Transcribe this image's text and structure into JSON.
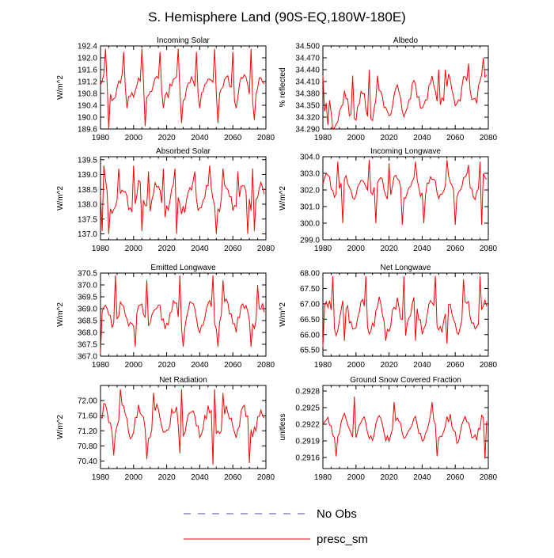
{
  "figure_title": "S. Hemisphere Land (90S-EQ,180W-180E)",
  "legend": [
    {
      "label": "No Obs",
      "color": "#4a4aa8",
      "style": "dashed"
    },
    {
      "label": "presc_sm",
      "color": "#ff0000",
      "style": "solid"
    }
  ],
  "chart_data": [
    {
      "type": "line",
      "title": "Incoming Solar",
      "ylabel": "W/m^2",
      "xlim": [
        1980,
        2080
      ],
      "ylim": [
        189.6,
        192.4
      ],
      "yticks": [
        "192.4",
        "192.0",
        "191.6",
        "191.2",
        "190.8",
        "190.4",
        "190.0",
        "189.6"
      ],
      "xticks": [
        "1980",
        "2000",
        "2020",
        "2040",
        "2060",
        "2080"
      ],
      "color": "#ff0000",
      "peaks": [
        {
          "x": 1983,
          "v": 192.3
        },
        {
          "x": 1994,
          "v": 192.2
        },
        {
          "x": 2005,
          "v": 192.3
        },
        {
          "x": 2016,
          "v": 192.2
        },
        {
          "x": 2027,
          "v": 192.3
        },
        {
          "x": 2038,
          "v": 192.2
        },
        {
          "x": 2049,
          "v": 192.3
        },
        {
          "x": 2060,
          "v": 192.2
        },
        {
          "x": 2071,
          "v": 192.3
        }
      ],
      "troughs": [
        {
          "x": 1985,
          "v": 189.6
        },
        {
          "x": 1996,
          "v": 190.3
        },
        {
          "x": 2007,
          "v": 189.7
        },
        {
          "x": 2018,
          "v": 190.3
        },
        {
          "x": 2029,
          "v": 189.8
        },
        {
          "x": 2040,
          "v": 190.3
        },
        {
          "x": 2051,
          "v": 189.8
        },
        {
          "x": 2062,
          "v": 190.3
        },
        {
          "x": 2073,
          "v": 189.9
        }
      ],
      "base": 191.0,
      "amp": 0.35,
      "trend": 0
    },
    {
      "type": "line",
      "title": "Albedo",
      "ylabel": "% reflected",
      "xlim": [
        1980,
        2080
      ],
      "ylim": [
        34.29,
        34.5
      ],
      "yticks": [
        "34.500",
        "34.470",
        "34.440",
        "34.410",
        "34.380",
        "34.350",
        "34.320",
        "34.290"
      ],
      "xticks": [
        "1980",
        "2000",
        "2020",
        "2040",
        "2060",
        "2080"
      ],
      "color": "#ff0000",
      "peaks": [
        {
          "x": 1980,
          "v": 34.425
        },
        {
          "x": 1998,
          "v": 34.425
        },
        {
          "x": 2008,
          "v": 34.44
        },
        {
          "x": 2013,
          "v": 34.425
        },
        {
          "x": 2050,
          "v": 34.44
        },
        {
          "x": 2054,
          "v": 34.44
        },
        {
          "x": 2068,
          "v": 34.455
        },
        {
          "x": 2077,
          "v": 34.47
        }
      ],
      "troughs": [
        {
          "x": 1986,
          "v": 34.29
        },
        {
          "x": 1983,
          "v": 34.3
        }
      ],
      "base": 34.33,
      "amp": 0.035,
      "trend": 0.0007
    },
    {
      "type": "line",
      "title": "Absorbed Solar",
      "ylabel": "W/m^2",
      "xlim": [
        1980,
        2080
      ],
      "ylim": [
        136.8,
        139.6
      ],
      "yticks": [
        "139.5",
        "139.0",
        "138.5",
        "138.0",
        "137.5",
        "137.0"
      ],
      "xticks": [
        "1980",
        "2000",
        "2020",
        "2040",
        "2060",
        "2080"
      ],
      "color": "#ff0000",
      "peaks": [
        {
          "x": 1982,
          "v": 139.3
        },
        {
          "x": 1991,
          "v": 139.2
        },
        {
          "x": 2000,
          "v": 139.3
        },
        {
          "x": 2009,
          "v": 139.1
        },
        {
          "x": 2018,
          "v": 139.2
        },
        {
          "x": 2025,
          "v": 139.2
        },
        {
          "x": 2037,
          "v": 139.1
        },
        {
          "x": 2046,
          "v": 139.3
        },
        {
          "x": 2054,
          "v": 139.2
        },
        {
          "x": 2063,
          "v": 139.1
        },
        {
          "x": 2072,
          "v": 139.2
        }
      ],
      "troughs": [
        {
          "x": 1981,
          "v": 137.1
        },
        {
          "x": 1985,
          "v": 137.0
        },
        {
          "x": 2005,
          "v": 137.1
        },
        {
          "x": 2026,
          "v": 137.0
        },
        {
          "x": 2050,
          "v": 137.0
        },
        {
          "x": 2069,
          "v": 137.0
        },
        {
          "x": 2073,
          "v": 137.1
        }
      ],
      "base": 138.2,
      "amp": 0.45,
      "trend": 0
    },
    {
      "type": "line",
      "title": "Incoming Longwave",
      "ylabel": "W/m^2",
      "xlim": [
        1980,
        2080
      ],
      "ylim": [
        299,
        304
      ],
      "yticks": [
        "304.0",
        "303.0",
        "302.0",
        "301.0",
        "300.0",
        "299.0"
      ],
      "xticks": [
        "1980",
        "2000",
        "2020",
        "2040",
        "2060",
        "2080"
      ],
      "color": "#ff0000",
      "peaks": [
        {
          "x": 1989,
          "v": 303.7
        },
        {
          "x": 2008,
          "v": 303.8
        },
        {
          "x": 2020,
          "v": 303.6
        },
        {
          "x": 2036,
          "v": 303.7
        },
        {
          "x": 2055,
          "v": 303.8
        },
        {
          "x": 2068,
          "v": 303.5
        },
        {
          "x": 2075,
          "v": 303.7
        }
      ],
      "troughs": [
        {
          "x": 1992,
          "v": 300.0
        },
        {
          "x": 2012,
          "v": 300.0
        },
        {
          "x": 2028,
          "v": 299.9
        },
        {
          "x": 2041,
          "v": 300.0
        },
        {
          "x": 2060,
          "v": 299.9
        },
        {
          "x": 2076,
          "v": 299.9
        }
      ],
      "base": 302.2,
      "amp": 0.6,
      "trend": 0
    },
    {
      "type": "line",
      "title": "Emitted Longwave",
      "ylabel": "W/m^2",
      "xlim": [
        1980,
        2080
      ],
      "ylim": [
        367,
        370.5
      ],
      "yticks": [
        "370.5",
        "370.0",
        "369.5",
        "369.0",
        "368.5",
        "368.0",
        "367.5",
        "367.0"
      ],
      "xticks": [
        "1980",
        "2000",
        "2020",
        "2040",
        "2060",
        "2080"
      ],
      "color": "#ff0000",
      "peaks": [
        {
          "x": 1989,
          "v": 370.4
        },
        {
          "x": 2008,
          "v": 370.2
        },
        {
          "x": 2028,
          "v": 370.4
        },
        {
          "x": 2048,
          "v": 370.4
        },
        {
          "x": 2054,
          "v": 370.2
        },
        {
          "x": 2075,
          "v": 370.0
        }
      ],
      "troughs": [
        {
          "x": 1980,
          "v": 367.1
        },
        {
          "x": 2001,
          "v": 367.4
        },
        {
          "x": 2030,
          "v": 367.4
        },
        {
          "x": 2051,
          "v": 367.4
        },
        {
          "x": 2071,
          "v": 367.4
        }
      ],
      "base": 368.7,
      "amp": 0.5,
      "trend": 0
    },
    {
      "type": "line",
      "title": "Net Longwave",
      "ylabel": "W/m^2",
      "xlim": [
        1980,
        2080
      ],
      "ylim": [
        65.3,
        68.0
      ],
      "yticks": [
        "68.00",
        "67.50",
        "67.00",
        "66.50",
        "66.00",
        "65.50"
      ],
      "xticks": [
        "1980",
        "2000",
        "2020",
        "2040",
        "2060",
        "2080"
      ],
      "color": "#ff0000",
      "peaks": [
        {
          "x": 1986,
          "v": 67.9
        },
        {
          "x": 2006,
          "v": 67.9
        },
        {
          "x": 2029,
          "v": 67.9
        },
        {
          "x": 2048,
          "v": 67.9
        },
        {
          "x": 2065,
          "v": 67.8
        },
        {
          "x": 2075,
          "v": 67.9
        }
      ],
      "troughs": [
        {
          "x": 1980,
          "v": 65.6
        },
        {
          "x": 1993,
          "v": 65.8
        },
        {
          "x": 2018,
          "v": 65.8
        },
        {
          "x": 2036,
          "v": 65.8
        },
        {
          "x": 2055,
          "v": 65.7
        }
      ],
      "base": 66.6,
      "amp": 0.45,
      "trend": 0
    },
    {
      "type": "line",
      "title": "Net Radiation",
      "ylabel": "W/m^2",
      "xlim": [
        1980,
        2080
      ],
      "ylim": [
        70.2,
        72.4
      ],
      "yticks": [
        "72.00",
        "71.60",
        "71.20",
        "70.80",
        "70.40"
      ],
      "xticks": [
        "1980",
        "2000",
        "2020",
        "2040",
        "2060",
        "2080"
      ],
      "color": "#ff0000",
      "peaks": [
        {
          "x": 1992,
          "v": 72.3
        },
        {
          "x": 2012,
          "v": 72.2
        },
        {
          "x": 2029,
          "v": 72.3
        },
        {
          "x": 2049,
          "v": 72.3
        },
        {
          "x": 2054,
          "v": 72.2
        }
      ],
      "troughs": [
        {
          "x": 1988,
          "v": 70.55
        },
        {
          "x": 2008,
          "v": 70.45
        },
        {
          "x": 2028,
          "v": 70.6
        },
        {
          "x": 2048,
          "v": 70.3
        },
        {
          "x": 2070,
          "v": 70.35
        }
      ],
      "base": 71.45,
      "amp": 0.35,
      "trend": 0
    },
    {
      "type": "line",
      "title": "Ground Snow Covered Fraction",
      "ylabel": "unitless",
      "xlim": [
        1980,
        2080
      ],
      "ylim": [
        0.2914,
        0.2929
      ],
      "yticks": [
        "0.2928",
        "0.2925",
        "0.2922",
        "0.2919",
        "0.2916"
      ],
      "xticks": [
        "1980",
        "2000",
        "2020",
        "2040",
        "2060",
        "2080"
      ],
      "color": "#ff0000",
      "peaks": [
        {
          "x": 1999,
          "v": 0.2927
        },
        {
          "x": 2023,
          "v": 0.2926
        },
        {
          "x": 2046,
          "v": 0.2926
        },
        {
          "x": 2078,
          "v": 0.2927
        }
      ],
      "troughs": [
        {
          "x": 1988,
          "v": 0.29162
        },
        {
          "x": 2049,
          "v": 0.29162
        },
        {
          "x": 2078,
          "v": 0.29158
        }
      ],
      "base": 0.29212,
      "amp": 0.0002,
      "trend": 0
    }
  ]
}
